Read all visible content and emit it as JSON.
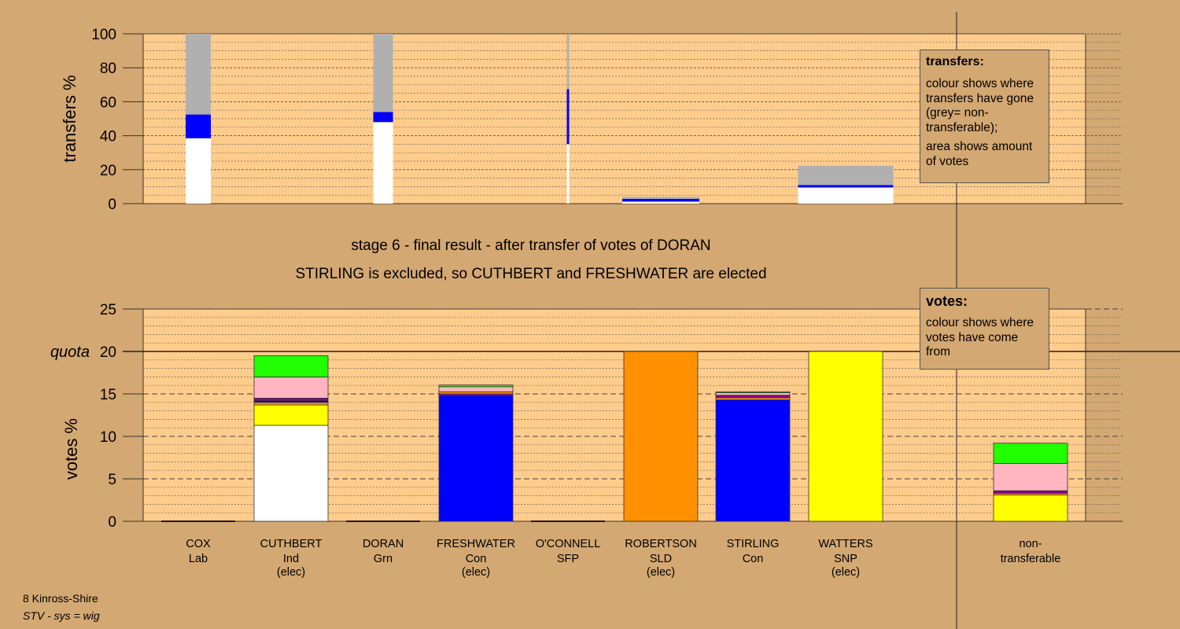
{
  "chart_data": [
    {
      "type": "bar",
      "stacked": true,
      "ylabel": "transfers %",
      "ylim": [
        0,
        100
      ],
      "yticks": [
        0,
        20,
        40,
        60,
        80,
        100
      ],
      "grid": true,
      "colors": {
        "own": "#FFFFFF",
        "con": "#0000FF",
        "non_transferable": "#B0B0B0"
      },
      "bars": [
        {
          "candidate": "COX",
          "segments": [
            {
              "color": "#FFFFFF",
              "value": 38.5
            },
            {
              "color": "#0000FF",
              "value": 14
            },
            {
              "color": "#B0B0B0",
              "value": 47.5
            }
          ]
        },
        {
          "candidate": "DORAN",
          "segments": [
            {
              "color": "#FFFFFF",
              "value": 48
            },
            {
              "color": "#0000FF",
              "value": 6
            },
            {
              "color": "#B0B0B0",
              "value": 46
            }
          ]
        },
        {
          "candidate": "O'CONNELL",
          "segments": [
            {
              "color": "#FFFFFF",
              "value": 35
            },
            {
              "color": "#0000FF",
              "value": 32.5
            },
            {
              "color": "#B0B0B0",
              "value": 32.5
            }
          ]
        },
        {
          "candidate": "ROBERTSON",
          "segments": [
            {
              "color": "#FFFFFF",
              "value": 1.2
            },
            {
              "color": "#0000FF",
              "value": 1.6
            },
            {
              "color": "#B0B0B0",
              "value": 1.2
            }
          ]
        },
        {
          "candidate": "WATTERS",
          "segments": [
            {
              "color": "#FFFFFF",
              "value": 9.5
            },
            {
              "color": "#0000FF",
              "value": 1.5
            },
            {
              "color": "#B0B0B0",
              "value": 11.3
            }
          ]
        }
      ]
    },
    {
      "type": "bar",
      "stacked": true,
      "ylabel": "votes %",
      "ylim": [
        0,
        25
      ],
      "yticks": [
        0,
        5,
        10,
        15,
        20,
        25
      ],
      "quota": 20,
      "quota_label": "quota",
      "grid": true,
      "categories": [
        {
          "name": "COX",
          "party": "Lab",
          "status": ""
        },
        {
          "name": "CUTHBERT",
          "party": "Ind",
          "status": "(elec)"
        },
        {
          "name": "DORAN",
          "party": "Grn",
          "status": ""
        },
        {
          "name": "FRESHWATER",
          "party": "Con",
          "status": "(elec)"
        },
        {
          "name": "O'CONNELL",
          "party": "SFP",
          "status": ""
        },
        {
          "name": "ROBERTSON",
          "party": "SLD",
          "status": "(elec)"
        },
        {
          "name": "STIRLING",
          "party": "Con",
          "status": ""
        },
        {
          "name": "WATTERS",
          "party": "SNP",
          "status": "(elec)"
        },
        {
          "name": "non-",
          "party": "transferable",
          "status": ""
        }
      ],
      "bars": [
        {
          "candidate": "COX",
          "segments": []
        },
        {
          "candidate": "CUTHBERT",
          "segments": [
            {
              "color": "#FFFFFF",
              "value": 11.3
            },
            {
              "color": "#FFFF00",
              "value": 2.4
            },
            {
              "color": "#FF9900",
              "value": 0.3
            },
            {
              "color": "#0000FF",
              "value": 0.2
            },
            {
              "color": "#8B008B",
              "value": 0.3
            },
            {
              "color": "#FFB6C1",
              "value": 2.5
            },
            {
              "color": "#22FF00",
              "value": 2.5
            }
          ]
        },
        {
          "candidate": "DORAN",
          "segments": []
        },
        {
          "candidate": "FRESHWATER",
          "segments": [
            {
              "color": "#0000FF",
              "value": 14.8
            },
            {
              "color": "#8B008B",
              "value": 0.2
            },
            {
              "color": "#FF9900",
              "value": 0.25
            },
            {
              "color": "#FFB6C1",
              "value": 0.6
            },
            {
              "color": "#22FF00",
              "value": 0.2
            }
          ]
        },
        {
          "candidate": "O'CONNELL",
          "segments": []
        },
        {
          "candidate": "ROBERTSON",
          "segments": [
            {
              "color": "#FF9100",
              "value": 20
            }
          ]
        },
        {
          "candidate": "STIRLING",
          "segments": [
            {
              "color": "#0000FF",
              "value": 14.3
            },
            {
              "color": "#FF9900",
              "value": 0.25
            },
            {
              "color": "#8B008B",
              "value": 0.3
            },
            {
              "color": "#FFB6C1",
              "value": 0.3
            },
            {
              "color": "#22FF00",
              "value": 0.1
            }
          ]
        },
        {
          "candidate": "WATTERS",
          "segments": [
            {
              "color": "#FFFF00",
              "value": 20
            }
          ]
        },
        {
          "candidate": "non-transferable",
          "segments": [
            {
              "color": "#FFFF00",
              "value": 3.1
            },
            {
              "color": "#FF9900",
              "value": 0.2
            },
            {
              "color": "#8B008B",
              "value": 0.3
            },
            {
              "color": "#FFB6C1",
              "value": 3.2
            },
            {
              "color": "#22FF00",
              "value": 2.4
            }
          ]
        }
      ]
    }
  ],
  "titles": {
    "line1": "stage 6 - final result - after transfer of votes of DORAN",
    "line2": "STIRLING is excluded, so CUTHBERT and FRESHWATER are elected"
  },
  "legend_transfers": {
    "title": "transfers:",
    "text1": "colour shows where transfers have gone (grey= non-transferable);",
    "text2": "area shows amount of votes"
  },
  "legend_votes": {
    "title": "votes:",
    "text1": "colour shows where votes have come from"
  },
  "footer": {
    "line1": "8 Kinross-Shire",
    "line2": "STV - sys = wig"
  },
  "colors": {
    "background": "#D4A872",
    "plot_area": "#FFCC8C"
  }
}
